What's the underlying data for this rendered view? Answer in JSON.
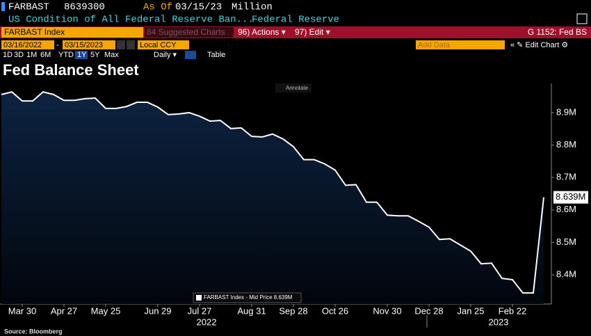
{
  "ui": {
    "ticker": "FARBAST",
    "ticker_value": "8639300",
    "as_of_label": "As Of",
    "as_of_date": "03/15/23",
    "unit": "Million",
    "description": "US Condition of All Federal Reserve Ban...",
    "source_name": "Federal Reserve",
    "security": "FARBAST Index",
    "suggested": "84 Suggested Charts",
    "actions": "96) Actions ▾",
    "edit": "97) Edit ▾",
    "page_code": "G 1152: Fed BS",
    "date_from": "03/16/2022",
    "date_sep": "-",
    "date_to": "03/15/2023",
    "currency": "Local CCY",
    "add_data": "Add Data",
    "edit_chart": "« ✎ Edit Chart ⚙",
    "periods": [
      "1D",
      "3D",
      "1M",
      "6M",
      "YTD",
      "1Y",
      "5Y",
      "Max"
    ],
    "frequency": "Daily ▾",
    "table": "Table",
    "annotate": "Annotate",
    "source": "Source: Bloomberg"
  },
  "chart_data": {
    "type": "line",
    "title": "Fed Balance Sheet",
    "categories": [
      null,
      null,
      "Mar 30",
      null,
      null,
      null,
      "Apr 27",
      null,
      null,
      null,
      "May 25",
      null,
      null,
      null,
      null,
      "Jun 29",
      null,
      null,
      null,
      "Jul 27",
      null,
      null,
      null,
      null,
      "Aug 31",
      null,
      null,
      null,
      "Sep 28",
      null,
      null,
      null,
      "Oct 26",
      null,
      null,
      null,
      null,
      "Nov 30",
      null,
      null,
      null,
      "Dec 28",
      null,
      null,
      null,
      "Jan 25",
      null,
      null,
      null,
      "Feb 22",
      null,
      null,
      null
    ],
    "year_labels": [
      "2022",
      "2023"
    ],
    "series": [
      {
        "name": "FARBAST Index - Mid Price 8.639M",
        "color": "#ffffff",
        "fill": "#0c2340",
        "values": [
          8.956,
          8.964,
          8.936,
          8.936,
          8.964,
          8.956,
          8.938,
          8.938,
          8.943,
          8.945,
          8.913,
          8.913,
          8.919,
          8.932,
          8.932,
          8.917,
          8.894,
          8.896,
          8.9,
          8.889,
          8.874,
          8.876,
          8.851,
          8.853,
          8.827,
          8.825,
          8.834,
          8.819,
          8.795,
          8.755,
          8.755,
          8.742,
          8.723,
          8.676,
          8.678,
          8.624,
          8.624,
          8.584,
          8.582,
          8.582,
          8.565,
          8.547,
          8.509,
          8.511,
          8.492,
          8.473,
          8.434,
          8.436,
          8.389,
          8.385,
          8.344,
          8.344,
          8.639
        ],
        "last_label": "8.639M"
      }
    ],
    "ylim": [
      8.31,
      8.99
    ],
    "yticks": [
      {
        "value": 8.4,
        "label": "8.4M"
      },
      {
        "value": 8.5,
        "label": "8.5M"
      },
      {
        "value": 8.6,
        "label": "8.6M"
      },
      {
        "value": 8.7,
        "label": "8.7M"
      },
      {
        "value": 8.8,
        "label": "8.8M"
      },
      {
        "value": 8.9,
        "label": "8.9M"
      }
    ],
    "grid": false
  }
}
